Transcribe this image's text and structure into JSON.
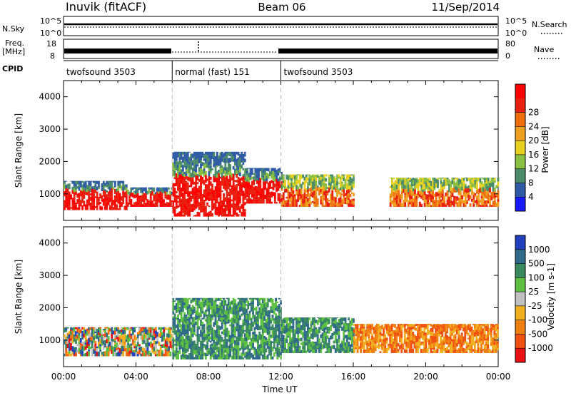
{
  "header": {
    "station": "Inuvik (fitACF)",
    "beam": "Beam 06",
    "date": "11/Sep/2014"
  },
  "status_panels": {
    "nsky": {
      "label": "N.Sky",
      "tick_top": "10^5",
      "tick_bottom": "10^0"
    },
    "nsearch": {
      "label": "N.Search",
      "tick_top": "10^5",
      "tick_bottom": "10^0"
    },
    "freq": {
      "label_line1": "Freq.",
      "label_line2": "[MHz]",
      "tick_top": "18",
      "tick_bottom": "8"
    },
    "nave": {
      "label": "Nave",
      "tick_top": "80",
      "tick_bottom": "0"
    },
    "cpid": {
      "label": "CPID",
      "segments": [
        {
          "name": "twofsound 3503",
          "start_hour": 0,
          "end_hour": 6
        },
        {
          "name": "normal (fast) 151",
          "start_hour": 6,
          "end_hour": 12
        },
        {
          "name": "twofsound 3503",
          "start_hour": 12,
          "end_hour": 24
        }
      ]
    }
  },
  "chart_data": [
    {
      "type": "heatmap",
      "panel": "power",
      "ylabel": "Slant Range [km]",
      "ylim": [
        180,
        4500
      ],
      "xlim_hours": [
        0,
        24
      ],
      "yticks": [
        "1000",
        "2000",
        "3000",
        "4000"
      ],
      "colorbar": {
        "label": "Power [dB]",
        "ticks": [
          "4",
          "8",
          "12",
          "16",
          "20",
          "24",
          "28"
        ],
        "colors": [
          "#1a1aff",
          "#2f5aa6",
          "#4a8c6a",
          "#8cc043",
          "#e8d020",
          "#f0a020",
          "#f07010",
          "#e82010",
          "#ff0000"
        ]
      },
      "scatter_bands": [
        {
          "start_hour": 0.0,
          "end_hour": 3.5,
          "low_km": 500,
          "high_km": 1400,
          "level": "strong"
        },
        {
          "start_hour": 3.5,
          "end_hour": 6.0,
          "low_km": 600,
          "high_km": 1200,
          "level": "strong"
        },
        {
          "start_hour": 6.0,
          "end_hour": 10.0,
          "low_km": 300,
          "high_km": 2300,
          "level": "strong"
        },
        {
          "start_hour": 10.0,
          "end_hour": 12.0,
          "low_km": 700,
          "high_km": 1800,
          "level": "strong"
        },
        {
          "start_hour": 12.0,
          "end_hour": 16.0,
          "low_km": 600,
          "high_km": 1600,
          "level": "medium"
        },
        {
          "start_hour": 18.0,
          "end_hour": 24.0,
          "low_km": 600,
          "high_km": 1500,
          "level": "medium"
        }
      ]
    },
    {
      "type": "heatmap",
      "panel": "velocity",
      "ylabel": "Slant Range [km]",
      "ylim": [
        180,
        4500
      ],
      "xlim_hours": [
        0,
        24
      ],
      "yticks": [
        "1000",
        "2000",
        "3000",
        "4000"
      ],
      "xlabel": "Time UT",
      "xticks": [
        "00:00",
        "04:00",
        "08:00",
        "12:00",
        "16:00",
        "20:00",
        "00:00"
      ],
      "colorbar": {
        "label": "Velocity [m s-1]",
        "ticks": [
          "1000",
          "500",
          "100",
          "25",
          "-25",
          "-100",
          "-500",
          "-1000"
        ],
        "colors": [
          "#2040c0",
          "#2f6a8a",
          "#3a8a60",
          "#5ec040",
          "#c0c0c0",
          "#f0b020",
          "#f08010",
          "#f05010",
          "#e81010"
        ]
      },
      "scatter_bands": [
        {
          "start_hour": 0.0,
          "end_hour": 6.0,
          "low_km": 500,
          "high_km": 1400,
          "level": "mixed"
        },
        {
          "start_hour": 6.0,
          "end_hour": 12.0,
          "low_km": 400,
          "high_km": 2300,
          "level": "toward"
        },
        {
          "start_hour": 12.0,
          "end_hour": 16.0,
          "low_km": 600,
          "high_km": 1700,
          "level": "toward"
        },
        {
          "start_hour": 16.0,
          "end_hour": 24.0,
          "low_km": 600,
          "high_km": 1500,
          "level": "away"
        }
      ]
    }
  ]
}
